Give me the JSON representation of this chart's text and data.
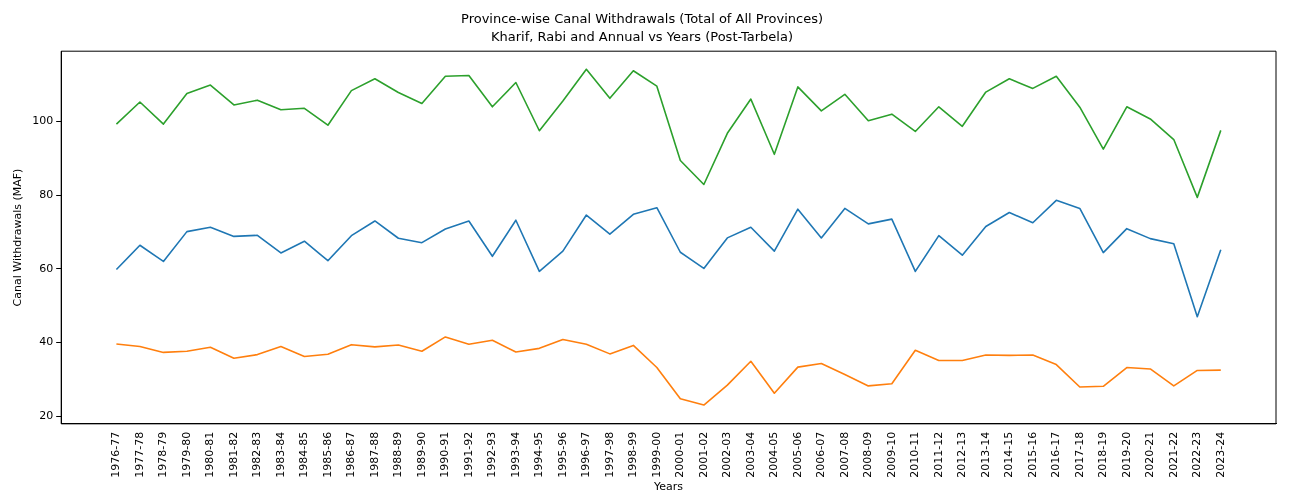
{
  "chart_data": {
    "type": "line",
    "title": "Province-wise Canal Withdrawals (Total of All Provinces)",
    "subtitle": "Kharif, Rabi and Annual vs Years (Post-Tarbela)",
    "xlabel": "Years",
    "ylabel": "Canal Withdrawals (MAF)",
    "categories": [
      "1976-77",
      "1977-78",
      "1978-79",
      "1979-80",
      "1980-81",
      "1981-82",
      "1982-83",
      "1983-84",
      "1984-85",
      "1985-86",
      "1986-87",
      "1987-88",
      "1988-89",
      "1989-90",
      "1990-91",
      "1991-92",
      "1992-93",
      "1993-94",
      "1994-95",
      "1995-96",
      "1996-97",
      "1997-98",
      "1998-99",
      "1999-00",
      "2000-01",
      "2001-02",
      "2002-03",
      "2003-04",
      "2004-05",
      "2005-06",
      "2006-07",
      "2007-08",
      "2008-09",
      "2009-10",
      "2010-11",
      "2011-12",
      "2012-13",
      "2013-14",
      "2014-15",
      "2015-16",
      "2016-17",
      "2017-18",
      "2018-19",
      "2019-20",
      "2020-21",
      "2021-22",
      "2022-23",
      "2023-24"
    ],
    "series": [
      {
        "color": "#1f77b4",
        "values": [
          59.8,
          66.4,
          62.0,
          70.1,
          71.3,
          68.8,
          69.1,
          64.3,
          67.5,
          62.2,
          69.0,
          73.0,
          68.3,
          67.1,
          70.8,
          73.0,
          63.4,
          73.2,
          59.3,
          64.8,
          74.6,
          69.4,
          74.8,
          76.6,
          64.5,
          60.1,
          68.4,
          71.3,
          64.8,
          76.2,
          68.4,
          76.4,
          72.2,
          73.5,
          59.3,
          69.0,
          63.7,
          71.5,
          75.3,
          72.5,
          78.6,
          76.4,
          64.4,
          70.9,
          68.2,
          66.8,
          47.0,
          65.2
        ]
      },
      {
        "color": "#ff7f0e",
        "values": [
          39.6,
          38.9,
          37.3,
          37.6,
          38.7,
          35.7,
          36.7,
          38.9,
          36.2,
          36.8,
          39.4,
          38.8,
          39.3,
          37.6,
          41.5,
          39.5,
          40.6,
          37.4,
          38.4,
          40.8,
          39.5,
          36.9,
          39.2,
          33.2,
          24.7,
          23.0,
          28.4,
          34.9,
          26.2,
          33.3,
          34.3,
          31.3,
          28.2,
          28.8,
          37.9,
          35.1,
          35.1,
          36.6,
          36.5,
          36.6,
          34.0,
          27.9,
          28.1,
          33.2,
          32.8,
          28.2,
          32.4,
          32.5
        ]
      },
      {
        "color": "#2ca02c",
        "values": [
          99.3,
          105.3,
          99.3,
          107.6,
          109.9,
          104.5,
          105.8,
          103.2,
          103.6,
          99.0,
          108.4,
          111.6,
          107.9,
          104.9,
          112.3,
          112.5,
          104.0,
          110.6,
          97.5,
          105.6,
          114.2,
          106.3,
          113.8,
          109.6,
          89.4,
          82.9,
          96.8,
          106.1,
          91.1,
          109.4,
          102.9,
          107.4,
          100.2,
          102.0,
          97.3,
          104.0,
          98.7,
          108.0,
          111.6,
          109.0,
          112.3,
          103.9,
          92.5,
          104.0,
          100.7,
          95.1,
          79.4,
          97.6
        ]
      }
    ],
    "ylim": [
      17.9,
      119.1
    ],
    "yticks": [
      20,
      40,
      60,
      80,
      100
    ],
    "grid": false,
    "legend": false,
    "marker": "none",
    "line_style": "solid"
  }
}
